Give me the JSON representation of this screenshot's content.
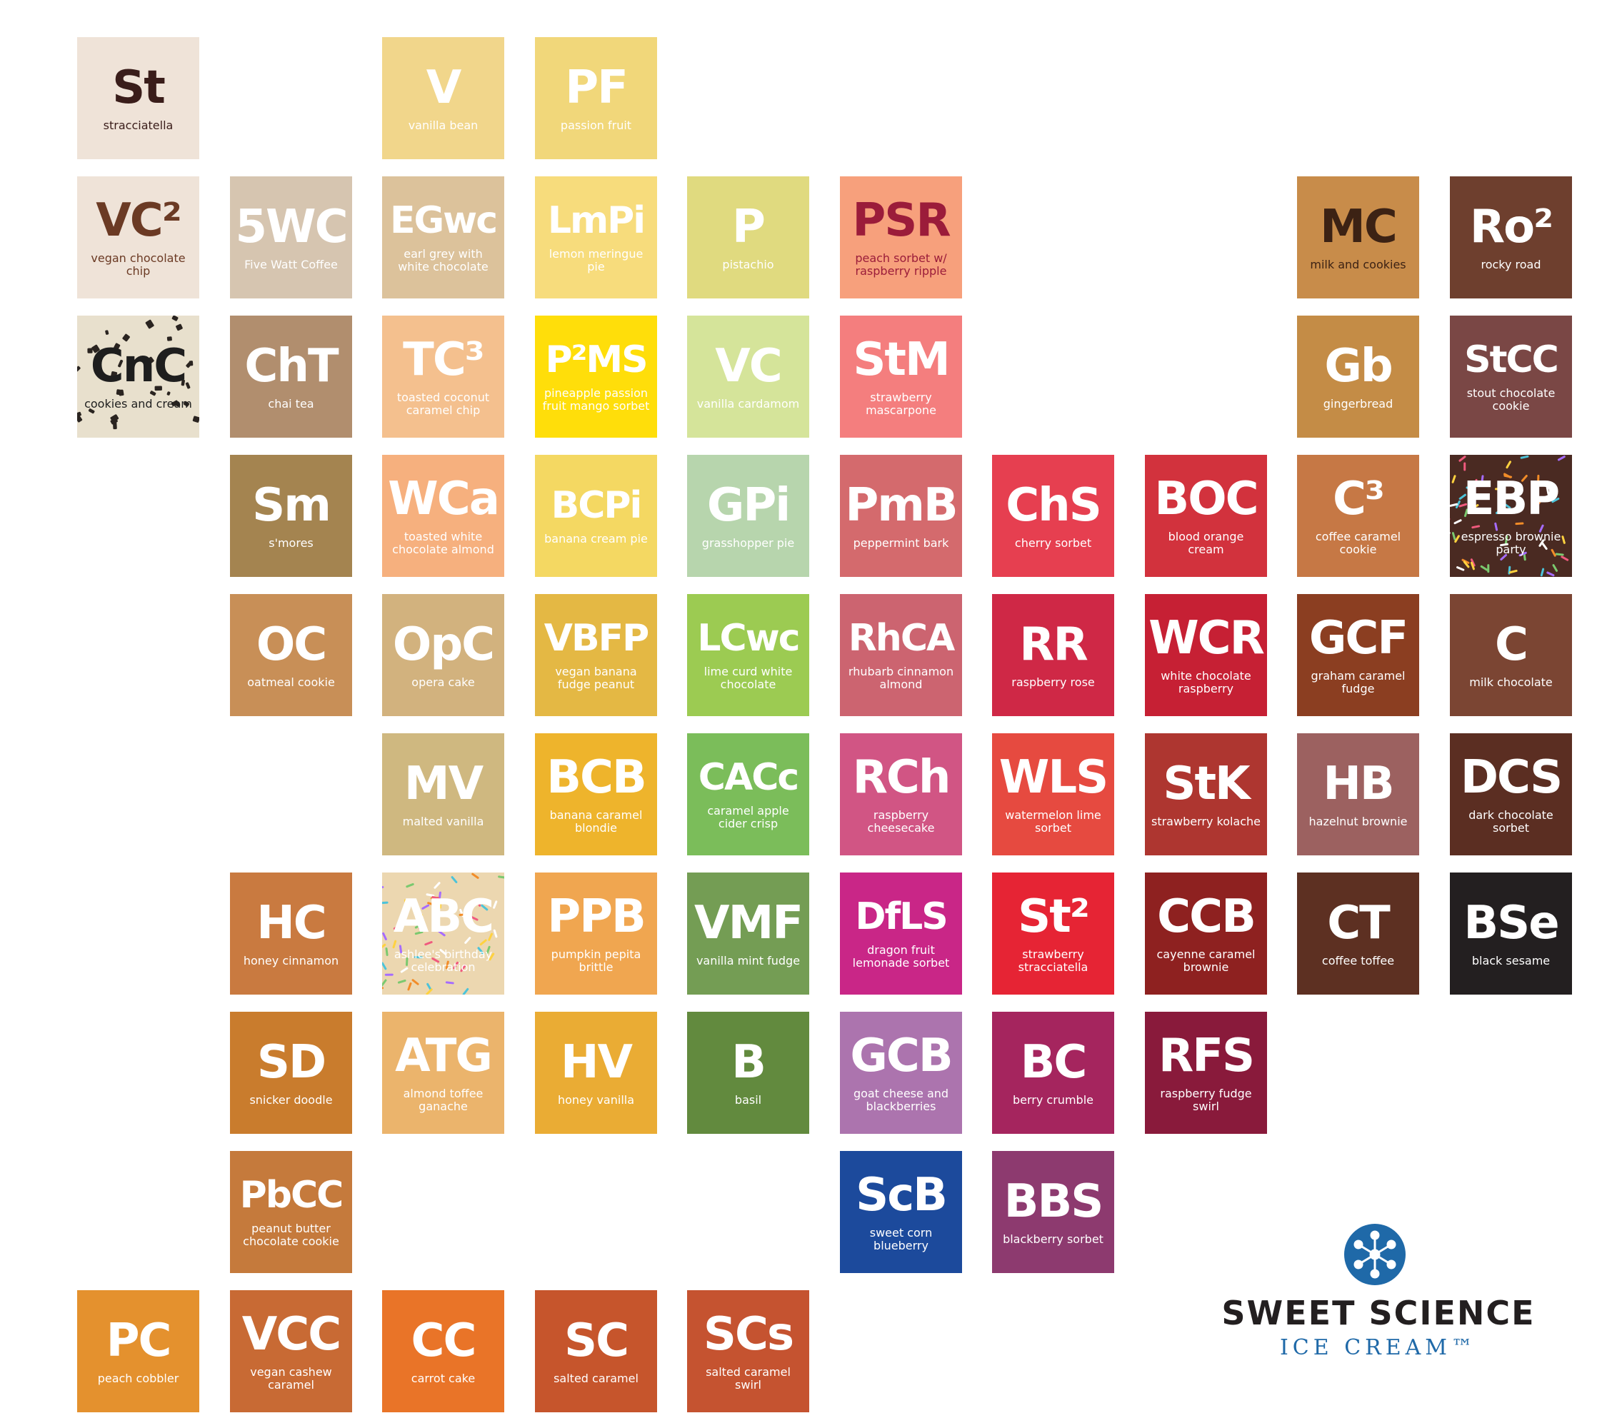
{
  "tiles": [
    {
      "sym": "St",
      "name": "stracciatella",
      "bg": "#efe3d8",
      "fg": "#3a1d1a",
      "col": 0,
      "row": 0
    },
    {
      "sym": "V",
      "name": "vanilla bean",
      "bg": "#f1d68b",
      "fg": "#ffffff",
      "col": 2,
      "row": 0
    },
    {
      "sym": "PF",
      "name": "passion fruit",
      "bg": "#f1d77a",
      "fg": "#ffffff",
      "col": 3,
      "row": 0
    },
    {
      "sym": "VC²",
      "name": "vegan chocolate chip",
      "bg": "#efe3d8",
      "fg": "#6b3a24",
      "col": 0,
      "row": 1
    },
    {
      "sym": "5WC",
      "name": "Five Watt Coffee",
      "bg": "#d6c5b0",
      "fg": "#ffffff",
      "col": 1,
      "row": 1
    },
    {
      "sym": "EGwc",
      "name": "earl grey with white chocolate",
      "bg": "#dcc29b",
      "fg": "#ffffff",
      "col": 2,
      "row": 1
    },
    {
      "sym": "LmPi",
      "name": "lemon meringue pie",
      "bg": "#f7dc7c",
      "fg": "#ffffff",
      "col": 3,
      "row": 1
    },
    {
      "sym": "P",
      "name": "pistachio",
      "bg": "#e0da7f",
      "fg": "#ffffff",
      "col": 4,
      "row": 1
    },
    {
      "sym": "PSR",
      "name": "peach sorbet w/ raspberry ripple",
      "bg": "#f7a07c",
      "fg": "#9b1c3a",
      "col": 5,
      "row": 1
    },
    {
      "sym": "MC",
      "name": "milk and cookies",
      "bg": "#c88c4a",
      "fg": "#3c2214",
      "col": 8,
      "row": 1
    },
    {
      "sym": "Ro²",
      "name": "rocky road",
      "bg": "#6e3f2e",
      "fg": "#ffffff",
      "col": 9,
      "row": 1
    },
    {
      "sym": "CnC",
      "name": "cookies and cream",
      "bg": "#e8e0cd",
      "fg": "#1e1e1e",
      "col": 0,
      "row": 2,
      "deco": "flecks"
    },
    {
      "sym": "ChT",
      "name": "chai tea",
      "bg": "#b18e6e",
      "fg": "#ffffff",
      "col": 1,
      "row": 2
    },
    {
      "sym": "TC³",
      "name": "toasted coconut caramel chip",
      "bg": "#f4c08e",
      "fg": "#ffffff",
      "col": 2,
      "row": 2
    },
    {
      "sym": "P²MS",
      "name": "pineapple passion fruit mango sorbet",
      "bg": "#ffde0a",
      "fg": "#ffffff",
      "col": 3,
      "row": 2
    },
    {
      "sym": "VC",
      "name": "vanilla cardamom",
      "bg": "#d5e49a",
      "fg": "#ffffff",
      "col": 4,
      "row": 2
    },
    {
      "sym": "StM",
      "name": "strawberry mascarpone",
      "bg": "#f47e7e",
      "fg": "#ffffff",
      "col": 5,
      "row": 2
    },
    {
      "sym": "Gb",
      "name": "gingerbread",
      "bg": "#c48c46",
      "fg": "#ffffff",
      "col": 8,
      "row": 2
    },
    {
      "sym": "StCC",
      "name": "stout chocolate cookie",
      "bg": "#7a4745",
      "fg": "#ffffff",
      "col": 9,
      "row": 2
    },
    {
      "sym": "Sm",
      "name": "s'mores",
      "bg": "#a48450",
      "fg": "#ffffff",
      "col": 1,
      "row": 3
    },
    {
      "sym": "WCa",
      "name": "toasted white chocolate almond",
      "bg": "#f6b07e",
      "fg": "#ffffff",
      "col": 2,
      "row": 3
    },
    {
      "sym": "BCPi",
      "name": "banana cream pie",
      "bg": "#f4d862",
      "fg": "#ffffff",
      "col": 3,
      "row": 3
    },
    {
      "sym": "GPi",
      "name": "grasshopper pie",
      "bg": "#b7d5ad",
      "fg": "#ffffff",
      "col": 4,
      "row": 3
    },
    {
      "sym": "PmB",
      "name": "peppermint bark",
      "bg": "#d46a6d",
      "fg": "#ffffff",
      "col": 5,
      "row": 3
    },
    {
      "sym": "ChS",
      "name": "cherry sorbet",
      "bg": "#e63f50",
      "fg": "#ffffff",
      "col": 6,
      "row": 3
    },
    {
      "sym": "BOC",
      "name": "blood orange cream",
      "bg": "#d2323d",
      "fg": "#ffffff",
      "col": 7,
      "row": 3
    },
    {
      "sym": "C³",
      "name": "coffee caramel cookie",
      "bg": "#c67845",
      "fg": "#ffffff",
      "col": 8,
      "row": 3
    },
    {
      "sym": "EBP",
      "name": "espresso brownie party",
      "bg": "#4a2a22",
      "fg": "#ffffff",
      "col": 9,
      "row": 3,
      "deco": "sprinkles"
    },
    {
      "sym": "OC",
      "name": "oatmeal cookie",
      "bg": "#c88f57",
      "fg": "#ffffff",
      "col": 1,
      "row": 4
    },
    {
      "sym": "OpC",
      "name": "opera cake",
      "bg": "#d2b27e",
      "fg": "#ffffff",
      "col": 2,
      "row": 4
    },
    {
      "sym": "VBFP",
      "name": "vegan banana fudge peanut",
      "bg": "#e4b844",
      "fg": "#ffffff",
      "col": 3,
      "row": 4
    },
    {
      "sym": "LCwc",
      "name": "lime curd white chocolate",
      "bg": "#9ccb52",
      "fg": "#ffffff",
      "col": 4,
      "row": 4
    },
    {
      "sym": "RhCA",
      "name": "rhubarb cinnamon almond",
      "bg": "#cc6470",
      "fg": "#ffffff",
      "col": 5,
      "row": 4
    },
    {
      "sym": "RR",
      "name": "raspberry rose",
      "bg": "#cf2846",
      "fg": "#ffffff",
      "col": 6,
      "row": 4
    },
    {
      "sym": "WCR",
      "name": "white chocolate raspberry",
      "bg": "#c62034",
      "fg": "#ffffff",
      "col": 7,
      "row": 4
    },
    {
      "sym": "GCF",
      "name": "graham caramel fudge",
      "bg": "#8b3e21",
      "fg": "#ffffff",
      "col": 8,
      "row": 4
    },
    {
      "sym": "C",
      "name": "milk chocolate",
      "bg": "#7b4533",
      "fg": "#ffffff",
      "col": 9,
      "row": 4
    },
    {
      "sym": "MV",
      "name": "malted vanilla",
      "bg": "#cfb880",
      "fg": "#ffffff",
      "col": 2,
      "row": 5
    },
    {
      "sym": "BCB",
      "name": "banana caramel blondie",
      "bg": "#eeb42c",
      "fg": "#ffffff",
      "col": 3,
      "row": 5
    },
    {
      "sym": "CACc",
      "name": "caramel apple cider crisp",
      "bg": "#7bbd5a",
      "fg": "#ffffff",
      "col": 4,
      "row": 5
    },
    {
      "sym": "RCh",
      "name": "raspberry cheesecake",
      "bg": "#d15584",
      "fg": "#ffffff",
      "col": 5,
      "row": 5
    },
    {
      "sym": "WLS",
      "name": "watermelon lime sorbet",
      "bg": "#e64a40",
      "fg": "#ffffff",
      "col": 6,
      "row": 5
    },
    {
      "sym": "StK",
      "name": "strawberry kolache",
      "bg": "#ae3630",
      "fg": "#ffffff",
      "col": 7,
      "row": 5
    },
    {
      "sym": "HB",
      "name": "hazelnut brownie",
      "bg": "#9c6160",
      "fg": "#ffffff",
      "col": 8,
      "row": 5
    },
    {
      "sym": "DCS",
      "name": "dark chocolate sorbet",
      "bg": "#5b2e22",
      "fg": "#ffffff",
      "col": 9,
      "row": 5
    },
    {
      "sym": "HC",
      "name": "honey cinnamon",
      "bg": "#c97a40",
      "fg": "#ffffff",
      "col": 1,
      "row": 6
    },
    {
      "sym": "ABC",
      "name": "ashlee's birthday celebration",
      "bg": "#ecd7b0",
      "fg": "#ffffff",
      "col": 2,
      "row": 6,
      "deco": "sprinkles"
    },
    {
      "sym": "PPB",
      "name": "pumpkin pepita brittle",
      "bg": "#f0a650",
      "fg": "#ffffff",
      "col": 3,
      "row": 6
    },
    {
      "sym": "VMF",
      "name": "vanilla mint fudge",
      "bg": "#749d54",
      "fg": "#ffffff",
      "col": 4,
      "row": 6
    },
    {
      "sym": "DfLS",
      "name": "dragon fruit lemonade sorbet",
      "bg": "#c92687",
      "fg": "#ffffff",
      "col": 5,
      "row": 6
    },
    {
      "sym": "St²",
      "name": "strawberry stracciatella",
      "bg": "#e62434",
      "fg": "#ffffff",
      "col": 6,
      "row": 6
    },
    {
      "sym": "CCB",
      "name": "cayenne caramel brownie",
      "bg": "#8e2120",
      "fg": "#ffffff",
      "col": 7,
      "row": 6
    },
    {
      "sym": "CT",
      "name": "coffee toffee",
      "bg": "#5d3022",
      "fg": "#ffffff",
      "col": 8,
      "row": 6
    },
    {
      "sym": "BSe",
      "name": "black sesame",
      "bg": "#231f20",
      "fg": "#ffffff",
      "col": 9,
      "row": 6
    },
    {
      "sym": "SD",
      "name": "snicker doodle",
      "bg": "#c97c2d",
      "fg": "#ffffff",
      "col": 1,
      "row": 7
    },
    {
      "sym": "ATG",
      "name": "almond toffee ganache",
      "bg": "#ebb46c",
      "fg": "#ffffff",
      "col": 2,
      "row": 7
    },
    {
      "sym": "HV",
      "name": "honey vanilla",
      "bg": "#eaac34",
      "fg": "#ffffff",
      "col": 3,
      "row": 7
    },
    {
      "sym": "B",
      "name": "basil",
      "bg": "#628a3e",
      "fg": "#ffffff",
      "col": 4,
      "row": 7
    },
    {
      "sym": "GCB",
      "name": "goat cheese and blackberries",
      "bg": "#ac74ae",
      "fg": "#ffffff",
      "col": 5,
      "row": 7
    },
    {
      "sym": "BC",
      "name": "berry crumble",
      "bg": "#a5255e",
      "fg": "#ffffff",
      "col": 6,
      "row": 7
    },
    {
      "sym": "RFS",
      "name": "raspberry fudge swirl",
      "bg": "#891a3b",
      "fg": "#ffffff",
      "col": 7,
      "row": 7
    },
    {
      "sym": "PbCC",
      "name": "peanut butter chocolate cookie",
      "bg": "#c57a3c",
      "fg": "#ffffff",
      "col": 1,
      "row": 8
    },
    {
      "sym": "ScB",
      "name": "sweet corn blueberry",
      "bg": "#1c4a9c",
      "fg": "#ffffff",
      "col": 5,
      "row": 8
    },
    {
      "sym": "BBS",
      "name": "blackberry sorbet",
      "bg": "#8d3a6f",
      "fg": "#ffffff",
      "col": 6,
      "row": 8
    },
    {
      "sym": "PC",
      "name": "peach cobbler",
      "bg": "#e4912e",
      "fg": "#ffffff",
      "col": 0,
      "row": 9
    },
    {
      "sym": "VCC",
      "name": "vegan cashew caramel",
      "bg": "#c86a34",
      "fg": "#ffffff",
      "col": 1,
      "row": 9
    },
    {
      "sym": "CC",
      "name": "carrot cake",
      "bg": "#e97428",
      "fg": "#ffffff",
      "col": 2,
      "row": 9
    },
    {
      "sym": "SC",
      "name": "salted caramel",
      "bg": "#c6552c",
      "fg": "#ffffff",
      "col": 3,
      "row": 9
    },
    {
      "sym": "SCs",
      "name": "salted caramel swirl",
      "bg": "#c55330",
      "fg": "#ffffff",
      "col": 4,
      "row": 9
    }
  ],
  "brand": {
    "name": "SWEET SCIENCE",
    "sub": "ICE CREAM™",
    "name_color": "#231f20",
    "sub_color": "#1f69a8",
    "mark_color": "#1f69a8"
  }
}
